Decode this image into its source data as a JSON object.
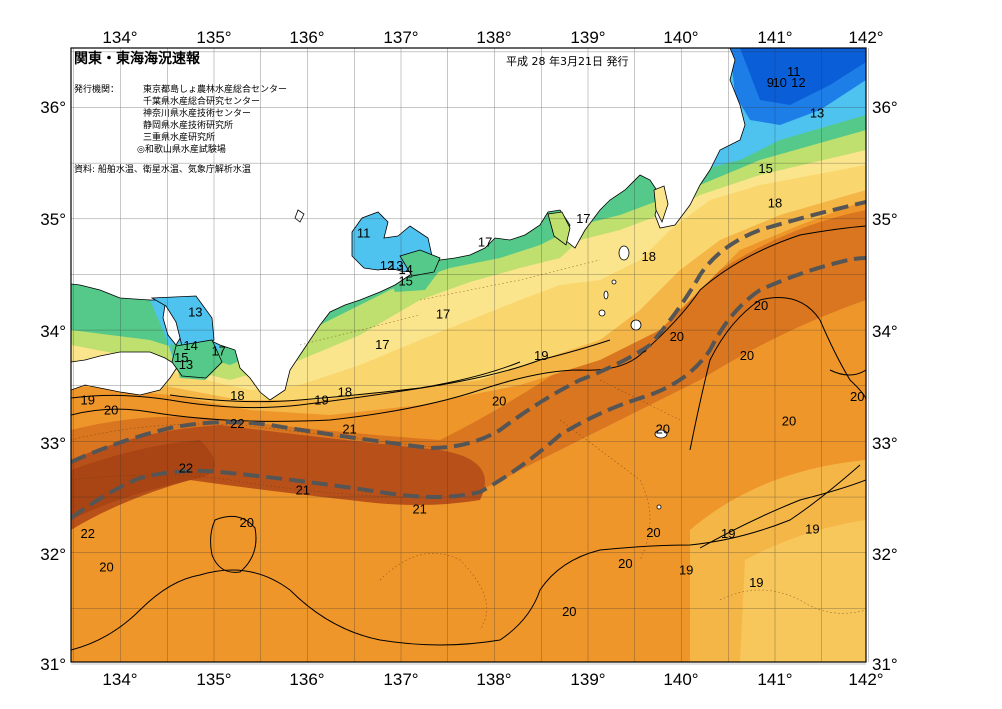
{
  "header": {
    "title": "関東・東海海況速報",
    "issued_label": "発行機関：",
    "issuers": [
      "東京都島しょ農林水産総合センター",
      "千葉県水産総合研究センター",
      "神奈川県水産技術センター",
      "静岡県水産技術研究所",
      "三重県水産研究所",
      "◎和歌山県水産試験場"
    ],
    "source": "資料: 船舶水温、衛星水温、気象庁解析水温",
    "date": "平成 28 年3月21日 発行"
  },
  "axes": {
    "lon_labels": [
      "134°",
      "135°",
      "136°",
      "137°",
      "138°",
      "139°",
      "140°",
      "141°",
      "142°"
    ],
    "lat_labels_left": [
      "36°",
      "35°",
      "34°",
      "33°",
      "32°",
      "31°"
    ],
    "lat_labels_right": [
      "36°",
      "35°",
      "34°",
      "33°",
      "32°",
      "31°"
    ]
  },
  "map_data": {
    "type": "sea-surface-temperature",
    "lon_range": [
      133.5,
      142.0
    ],
    "lat_range": [
      31.0,
      36.5
    ],
    "colors": {
      "sea_warm_dark": "#b8501a",
      "sea_warm": "#d9761f",
      "sea_main": "#ef962a",
      "sea_mid": "#f5b648",
      "sea_light": "#fad66e",
      "sea_pale": "#fbe58c",
      "sea_cool": "#bfe06e",
      "sea_green": "#54c98a",
      "sea_cyan": "#4fc3f0",
      "sea_blue": "#1e7ee8",
      "sea_deep": "#0a5ed8",
      "land": "#ffffff",
      "kuroshio_axis": "#555555"
    },
    "isotherm_labels": [
      {
        "t": "11",
        "lon": 141.2,
        "lat": 36.3
      },
      {
        "t": "9",
        "lon": 140.95,
        "lat": 36.2
      },
      {
        "t": "10",
        "lon": 141.05,
        "lat": 36.2
      },
      {
        "t": "12",
        "lon": 141.25,
        "lat": 36.2
      },
      {
        "t": "13",
        "lon": 141.45,
        "lat": 35.93
      },
      {
        "t": "15",
        "lon": 140.9,
        "lat": 35.43
      },
      {
        "t": "18",
        "lon": 141.0,
        "lat": 35.12
      },
      {
        "t": "11",
        "lon": 136.6,
        "lat": 34.85
      },
      {
        "t": "17",
        "lon": 137.9,
        "lat": 34.77
      },
      {
        "t": "17",
        "lon": 138.95,
        "lat": 34.98
      },
      {
        "t": "18",
        "lon": 139.65,
        "lat": 34.64
      },
      {
        "t": "12",
        "lon": 136.85,
        "lat": 34.56
      },
      {
        "t": "13",
        "lon": 136.95,
        "lat": 34.56
      },
      {
        "t": "14",
        "lon": 137.05,
        "lat": 34.52
      },
      {
        "t": "15",
        "lon": 137.05,
        "lat": 34.42
      },
      {
        "t": "17",
        "lon": 137.45,
        "lat": 34.12
      },
      {
        "t": "20",
        "lon": 140.85,
        "lat": 34.2
      },
      {
        "t": "13",
        "lon": 134.8,
        "lat": 34.14
      },
      {
        "t": "14",
        "lon": 134.75,
        "lat": 33.84
      },
      {
        "t": "17",
        "lon": 135.05,
        "lat": 33.79
      },
      {
        "t": "15",
        "lon": 134.65,
        "lat": 33.73
      },
      {
        "t": "13",
        "lon": 134.7,
        "lat": 33.67
      },
      {
        "t": "17",
        "lon": 136.8,
        "lat": 33.85
      },
      {
        "t": "19",
        "lon": 138.5,
        "lat": 33.75
      },
      {
        "t": "20",
        "lon": 139.95,
        "lat": 33.92
      },
      {
        "t": "20",
        "lon": 140.7,
        "lat": 33.75
      },
      {
        "t": "18",
        "lon": 135.25,
        "lat": 33.39
      },
      {
        "t": "18",
        "lon": 136.4,
        "lat": 33.42
      },
      {
        "t": "19",
        "lon": 136.15,
        "lat": 33.35
      },
      {
        "t": "20",
        "lon": 138.05,
        "lat": 33.34
      },
      {
        "t": "20",
        "lon": 141.88,
        "lat": 33.38
      },
      {
        "t": "19",
        "lon": 133.65,
        "lat": 33.35
      },
      {
        "t": "20",
        "lon": 133.9,
        "lat": 33.26
      },
      {
        "t": "22",
        "lon": 135.25,
        "lat": 33.14
      },
      {
        "t": "21",
        "lon": 136.45,
        "lat": 33.09
      },
      {
        "t": "20",
        "lon": 139.8,
        "lat": 33.09
      },
      {
        "t": "20",
        "lon": 141.15,
        "lat": 33.16
      },
      {
        "t": "22",
        "lon": 134.7,
        "lat": 32.74
      },
      {
        "t": "21",
        "lon": 135.95,
        "lat": 32.54
      },
      {
        "t": "21",
        "lon": 137.2,
        "lat": 32.37
      },
      {
        "t": "20",
        "lon": 135.35,
        "lat": 32.25
      },
      {
        "t": "20",
        "lon": 139.7,
        "lat": 32.16
      },
      {
        "t": "19",
        "lon": 140.5,
        "lat": 32.15
      },
      {
        "t": "19",
        "lon": 141.4,
        "lat": 32.19
      },
      {
        "t": "22",
        "lon": 133.65,
        "lat": 32.15
      },
      {
        "t": "20",
        "lon": 133.85,
        "lat": 31.85
      },
      {
        "t": "20",
        "lon": 139.4,
        "lat": 31.88
      },
      {
        "t": "19",
        "lon": 140.05,
        "lat": 31.82
      },
      {
        "t": "19",
        "lon": 140.8,
        "lat": 31.71
      },
      {
        "t": "20",
        "lon": 138.8,
        "lat": 31.45
      }
    ]
  }
}
